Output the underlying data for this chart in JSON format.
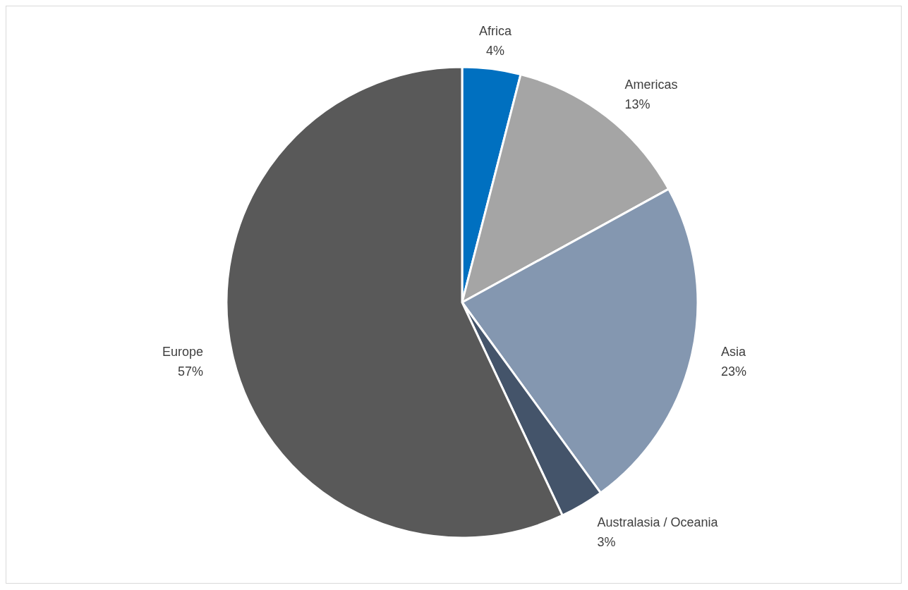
{
  "chart_data": {
    "type": "pie",
    "categories": [
      "Africa",
      "Americas",
      "Asia",
      "Australasia / Oceania",
      "Europe"
    ],
    "values": [
      4,
      13,
      23,
      3,
      57
    ],
    "value_labels": [
      "4%",
      "13%",
      "23%",
      "3%",
      "57%"
    ],
    "colors": [
      "#0070c0",
      "#a5a5a5",
      "#8497b0",
      "#44546a",
      "#595959"
    ],
    "legend": false
  }
}
